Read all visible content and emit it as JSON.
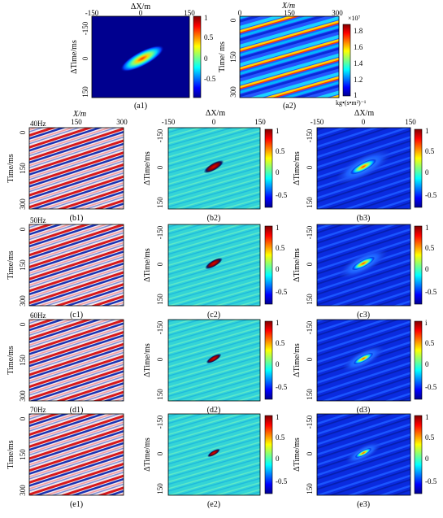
{
  "top": {
    "a1": {
      "xlabel": "ΔX/m",
      "ylabel": "ΔTime/ms",
      "xticks": [
        "-150",
        "0",
        "150"
      ],
      "yticks": [
        "-150",
        "0",
        "150"
      ],
      "cbar_ticks": [
        "1",
        "0.5",
        "0",
        "-0.5"
      ],
      "caption": "(a1)"
    },
    "a2": {
      "xlabel": "X/m",
      "ylabel": "Time/ ms",
      "xticks": [
        "0",
        "150",
        "300"
      ],
      "yticks": [
        "0",
        "150",
        "300"
      ],
      "cbar_exp": "×10⁷",
      "cbar_ticks": [
        "1.8",
        "1.6",
        "1.4",
        "1.2",
        "1"
      ],
      "cbar_unit": "kg•(s•m²)⁻¹",
      "caption": "(a2)"
    }
  },
  "col_labels": {
    "c1_xlabel": "X/m",
    "c1_xticks": [
      "0",
      "150",
      "300"
    ],
    "c2_xlabel": "ΔX/m",
    "c2_xticks": [
      "-150",
      "0",
      "150"
    ],
    "c3_xlabel": "ΔX/m",
    "c3_xticks": [
      "-150",
      "0",
      "150"
    ]
  },
  "rows": [
    {
      "freq": "40Hz",
      "c1": "(b1)",
      "c2": "(b2)",
      "c3": "(b3)"
    },
    {
      "freq": "50Hz",
      "c1": "(c1)",
      "c2": "(c2)",
      "c3": "(c3)"
    },
    {
      "freq": "60Hz",
      "c1": "(d1)",
      "c2": "(d2)",
      "c3": "(d3)"
    },
    {
      "freq": "70Hz",
      "c1": "(e1)",
      "c2": "(e2)",
      "c3": "(e3)"
    }
  ],
  "row_axes": {
    "time_ylabel": "Time/ms",
    "time_yticks": [
      "0",
      "150",
      "300"
    ],
    "dtime_ylabel": "ΔTime/ms",
    "dtime_yticks": [
      "-150",
      "0",
      "150"
    ],
    "cbar_ticks": [
      "1",
      "0.5",
      "0",
      "-0.5"
    ],
    "d3_cbar_top": "i"
  },
  "colors": {
    "jet_dark_blue": "#00008f",
    "jet_red": "#e00000",
    "cyan_bg": "#33d4d8",
    "seis_red": "#d7191c",
    "seis_blue": "#1a33b3"
  }
}
